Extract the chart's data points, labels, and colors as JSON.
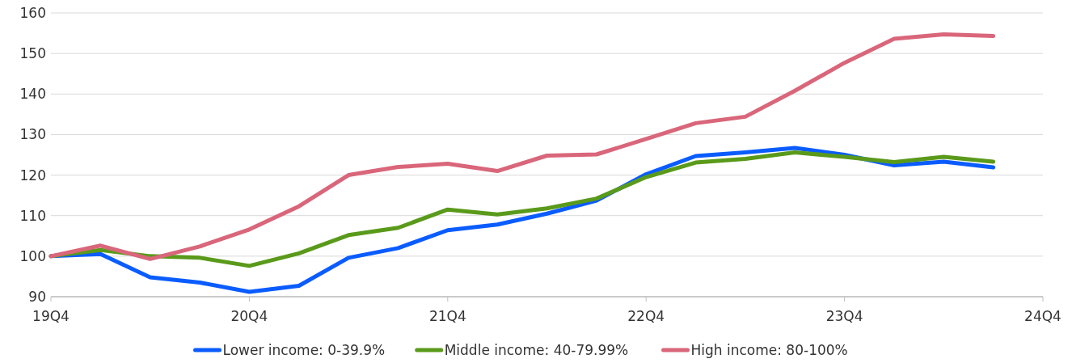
{
  "chart_data": {
    "type": "line",
    "categories": [
      "19Q4",
      null,
      null,
      null,
      "20Q4",
      null,
      null,
      null,
      "21Q4",
      null,
      null,
      null,
      "22Q4",
      null,
      null,
      null,
      "23Q4",
      null,
      null,
      null,
      "24Q4"
    ],
    "ylim": [
      90,
      160
    ],
    "yticks": [
      90,
      100,
      110,
      120,
      130,
      140,
      150,
      160
    ],
    "grid": "y",
    "legend": "bottom",
    "marker": "none",
    "line_style": "solid",
    "series": [
      {
        "name": "Lower income: 0-39.9%",
        "color": "#0a5cff",
        "values": [
          100,
          100.5,
          94.8,
          93.5,
          91.2,
          92.7,
          99.6,
          102,
          106.4,
          107.8,
          110.5,
          113.7,
          120.2,
          124.7,
          125.6,
          126.7,
          125,
          122.4,
          123.3,
          121.9,
          null
        ]
      },
      {
        "name": "Middle income: 40-79.99%",
        "color": "#5a9a1a",
        "values": [
          100,
          101.5,
          100,
          99.6,
          97.6,
          100.7,
          105.2,
          107,
          111.5,
          110.3,
          111.8,
          114.2,
          119.5,
          123.1,
          124,
          125.6,
          124.5,
          123.2,
          124.5,
          123.3,
          null
        ]
      },
      {
        "name": "High income: 80-100%",
        "color": "#d9667a",
        "values": [
          100,
          102.6,
          99.3,
          102.4,
          106.6,
          112.3,
          120,
          122,
          122.8,
          121,
          124.8,
          125.1,
          128.9,
          132.8,
          134.4,
          140.8,
          147.7,
          153.6,
          154.7,
          154.3,
          null
        ]
      }
    ]
  }
}
